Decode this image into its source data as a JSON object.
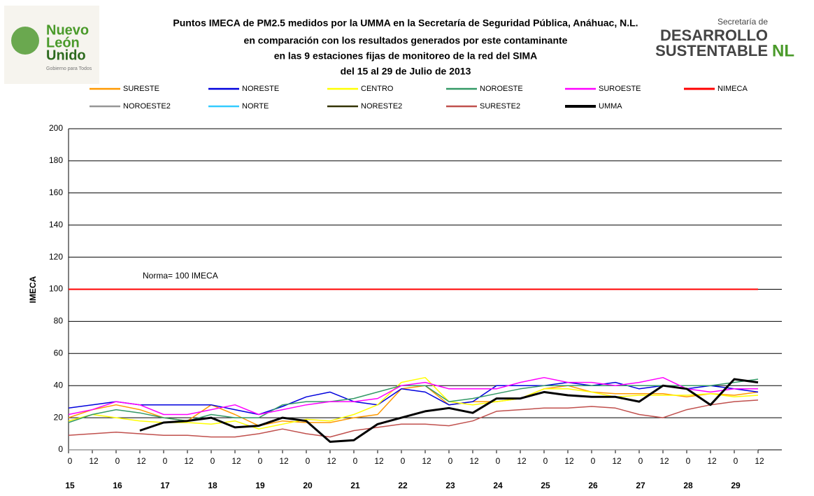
{
  "logos": {
    "left_line1": "Nuevo",
    "left_line2": "León",
    "left_line3": "Unido",
    "left_tag": "Gobierno para Todos",
    "right_line1": "Secretaría de",
    "right_line2": "DESARROLLO",
    "right_line3": "SUSTENTABLE",
    "right_mark": "NL"
  },
  "chart_data": {
    "type": "line",
    "title": [
      "Puntos IMECA de PM2.5 medidos por la UMMA en la Secretaría de Seguridad Pública, Anáhuac, N.L.",
      "en comparación con los resultados generados por este contaminante",
      "en las 9 estaciones fijas de monitoreo de la red del SIMA",
      "del 15 al 29 de Julio de 2013"
    ],
    "y_label": "IMECA",
    "annotation": "Norma= 100 IMECA",
    "x": [
      0,
      12,
      24,
      36,
      48,
      60,
      72,
      84,
      96,
      108,
      120,
      132,
      144,
      156,
      168,
      180,
      192,
      204,
      216,
      228,
      240,
      252,
      264,
      276,
      288,
      300,
      312,
      324,
      336,
      348
    ],
    "xlim": [
      0,
      360
    ],
    "ylim": [
      0,
      200
    ],
    "yticks": [
      0,
      20,
      40,
      60,
      80,
      100,
      120,
      140,
      160,
      180,
      200
    ],
    "xticks": [
      {
        "value": 0,
        "label": "0"
      },
      12,
      {
        "value": 24,
        "label": "0"
      },
      {
        "value": 36,
        "label": "12"
      },
      {
        "value": 48,
        "label": "0"
      },
      {
        "value": 60,
        "label": "12"
      },
      {
        "value": 72,
        "label": "0"
      },
      {
        "value": 84,
        "label": "12"
      },
      {
        "value": 96,
        "label": "0"
      },
      {
        "value": 108,
        "label": "12"
      },
      {
        "value": 120,
        "label": "0"
      },
      {
        "value": 132,
        "label": "12"
      },
      {
        "value": 144,
        "label": "0"
      },
      {
        "value": 156,
        "label": "12"
      },
      {
        "value": 168,
        "label": "0"
      },
      {
        "value": 180,
        "label": "12"
      },
      {
        "value": 192,
        "label": "0"
      },
      {
        "value": 204,
        "label": "12"
      },
      {
        "value": 216,
        "label": "0"
      },
      {
        "value": 228,
        "label": "12"
      },
      {
        "value": 240,
        "label": "0"
      },
      {
        "value": 252,
        "label": "12"
      },
      {
        "value": 264,
        "label": "0"
      },
      {
        "value": 276,
        "label": "12"
      },
      {
        "value": 288,
        "label": "0"
      },
      {
        "value": 300,
        "label": "12"
      },
      {
        "value": 312,
        "label": "0"
      },
      {
        "value": 324,
        "label": "12"
      },
      {
        "value": 336,
        "label": "0"
      },
      {
        "value": 348,
        "label": "12"
      }
    ],
    "day_ticks": [
      {
        "value": 0,
        "label": "15"
      },
      {
        "value": 24,
        "label": "16"
      },
      {
        "value": 48,
        "label": "17"
      },
      {
        "value": 72,
        "label": "18"
      },
      {
        "value": 96,
        "label": "19"
      },
      {
        "value": 120,
        "label": "20"
      },
      {
        "value": 144,
        "label": "21"
      },
      {
        "value": 168,
        "label": "22"
      },
      {
        "value": 192,
        "label": "23"
      },
      {
        "value": 216,
        "label": "24"
      },
      {
        "value": 240,
        "label": "25"
      },
      {
        "value": 264,
        "label": "26"
      },
      {
        "value": 288,
        "label": "27"
      },
      {
        "value": 312,
        "label": "28"
      },
      {
        "value": 336,
        "label": "29"
      }
    ],
    "grid": true,
    "series": [
      {
        "name": "SURESTE",
        "color": "#ff9900",
        "width": 1.5,
        "values": [
          20,
          25,
          28,
          25,
          20,
          18,
          28,
          22,
          15,
          18,
          17,
          17,
          20,
          22,
          38,
          40,
          28,
          30,
          30,
          32,
          38,
          40,
          36,
          35,
          35,
          35,
          33,
          35,
          34,
          36
        ]
      },
      {
        "name": "NORESTE",
        "color": "#0000dd",
        "width": 1.5,
        "values": [
          26,
          28,
          30,
          28,
          28,
          28,
          28,
          25,
          22,
          27,
          33,
          36,
          30,
          28,
          38,
          36,
          28,
          30,
          40,
          40,
          40,
          42,
          40,
          42,
          38,
          40,
          38,
          40,
          38,
          36
        ]
      },
      {
        "name": "CENTRO",
        "color": "#ffff00",
        "width": 1.5,
        "values": [
          18,
          22,
          20,
          18,
          17,
          17,
          16,
          18,
          13,
          16,
          19,
          18,
          22,
          28,
          42,
          45,
          30,
          28,
          30,
          32,
          38,
          38,
          36,
          33,
          34,
          34,
          34,
          35,
          33,
          34
        ]
      },
      {
        "name": "NOROESTE",
        "color": "#339966",
        "width": 1.5,
        "values": [
          17,
          22,
          25,
          23,
          20,
          18,
          22,
          20,
          20,
          28,
          30,
          30,
          32,
          36,
          40,
          40,
          30,
          32,
          35,
          38,
          40,
          40,
          40,
          40,
          40,
          40,
          40,
          40,
          42,
          44
        ]
      },
      {
        "name": "SUROESTE",
        "color": "#ff00ff",
        "width": 1.5,
        "values": [
          22,
          25,
          30,
          28,
          22,
          22,
          25,
          28,
          22,
          25,
          28,
          30,
          30,
          32,
          40,
          42,
          38,
          38,
          38,
          42,
          45,
          42,
          42,
          40,
          42,
          45,
          38,
          36,
          38,
          38
        ]
      },
      {
        "name": "NIMECA",
        "color": "#ff0000",
        "width": 2,
        "values": [
          100,
          100,
          100,
          100,
          100,
          100,
          100,
          100,
          100,
          100,
          100,
          100,
          100,
          100,
          100,
          100,
          100,
          100,
          100,
          100,
          100,
          100,
          100,
          100,
          100,
          100,
          100,
          100,
          100,
          100
        ]
      },
      {
        "name": "NOROESTE2",
        "color": "#969696",
        "width": 1.5,
        "values": [
          0,
          0,
          0,
          0,
          0,
          0,
          0,
          0,
          0,
          0,
          0,
          0,
          0,
          0,
          0,
          0,
          0,
          0,
          0,
          0,
          0,
          0,
          0,
          0,
          0,
          0,
          0,
          0,
          0,
          0
        ]
      },
      {
        "name": "NORTE",
        "color": "#33ccff",
        "width": 1.5,
        "values": [
          null,
          null,
          null,
          null,
          null,
          null,
          null,
          null,
          null,
          null,
          null,
          null,
          null,
          null,
          null,
          null,
          null,
          null,
          null,
          null,
          null,
          null,
          null,
          null,
          null,
          null,
          null,
          null,
          null,
          null
        ]
      },
      {
        "name": "NORESTE2",
        "color": "#333300",
        "width": 1.5,
        "values": [
          null,
          null,
          null,
          null,
          null,
          null,
          null,
          null,
          null,
          null,
          null,
          null,
          null,
          null,
          null,
          null,
          null,
          null,
          null,
          null,
          null,
          null,
          null,
          null,
          null,
          null,
          null,
          null,
          null,
          null
        ]
      },
      {
        "name": "SURESTE2",
        "color": "#c0504d",
        "width": 1.5,
        "values": [
          9,
          10,
          11,
          10,
          9,
          9,
          8,
          8,
          10,
          13,
          10,
          8,
          12,
          14,
          16,
          16,
          15,
          18,
          24,
          25,
          26,
          26,
          27,
          26,
          22,
          20,
          25,
          28,
          30,
          31
        ]
      },
      {
        "name": "UMMA",
        "color": "#000000",
        "width": 3,
        "values": [
          null,
          null,
          null,
          12,
          17,
          18,
          20,
          14,
          15,
          20,
          18,
          5,
          6,
          16,
          20,
          24,
          26,
          23,
          32,
          32,
          36,
          34,
          33,
          33,
          30,
          40,
          38,
          28,
          44,
          42
        ]
      }
    ]
  }
}
